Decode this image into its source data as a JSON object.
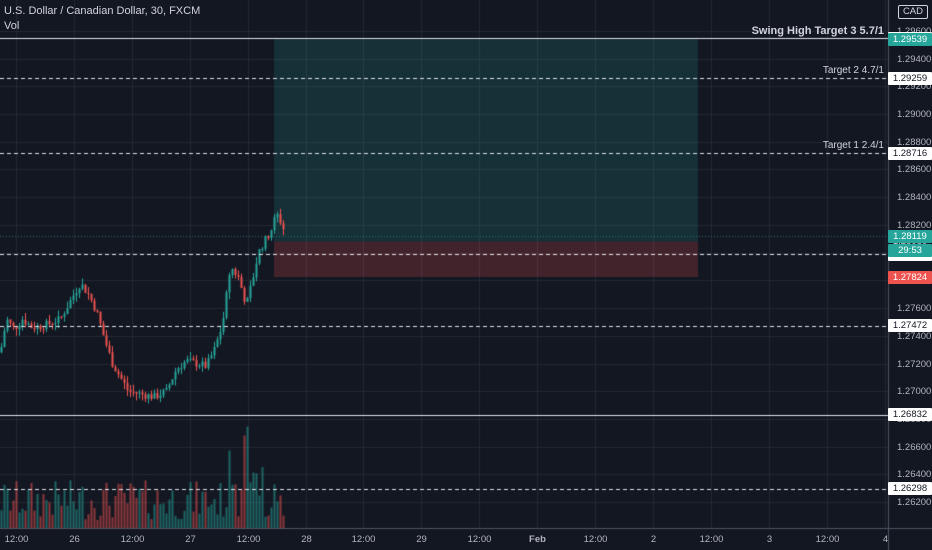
{
  "header": {
    "symbol": "U.S. Dollar / Canadian Dollar, 30, FXCM",
    "volume": "Vol"
  },
  "currency": "CAD",
  "colors": {
    "up": "#26a69a",
    "down": "#ef5350",
    "background": "#131722"
  },
  "price_axis": {
    "ticks": [
      "1.29600",
      "1.29400",
      "1.29200",
      "1.29000",
      "1.28800",
      "1.28600",
      "1.28400",
      "1.28200",
      "1.28000",
      "1.27800",
      "1.27600",
      "1.27400",
      "1.27200",
      "1.27000",
      "1.26800",
      "1.26600",
      "1.26400",
      "1.26200"
    ]
  },
  "time_axis": {
    "ticks": [
      "12:00",
      "26",
      "12:00",
      "27",
      "12:00",
      "28",
      "12:00",
      "29",
      "12:00",
      "Feb",
      "12:00",
      "2",
      "12:00",
      "3",
      "12:00",
      "4"
    ]
  },
  "levels": [
    {
      "label": "Swing High Target 3 5.7/1",
      "price": "1.29547",
      "style": "solid"
    },
    {
      "label": "Target 2 4.7/1",
      "price": "1.29259",
      "style": "dashed"
    },
    {
      "label": "Target 1 2.4/1",
      "price": "1.28716",
      "style": "dashed"
    },
    {
      "label": "",
      "price": "1.27988",
      "style": "dashed"
    },
    {
      "label": "",
      "price": "1.27472",
      "style": "dashed"
    },
    {
      "label": "",
      "price": "1.26832",
      "style": "solid"
    },
    {
      "label": "",
      "price": "1.26298",
      "style": "dashed"
    }
  ],
  "position": {
    "target_price": "1.29539",
    "entry_price": "1.28080",
    "stop_price": "1.27824"
  },
  "last_price": "1.28119",
  "countdown": "29:53",
  "price_range": [
    1.261,
    1.2975
  ]
}
